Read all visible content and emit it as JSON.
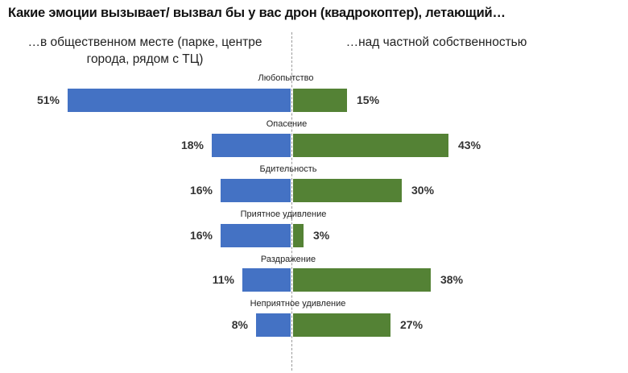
{
  "title": "Какие эмоции вызывает/ вызвал бы у вас дрон (квадрокоптер), летающий…",
  "subheads": {
    "left": "…в общественном месте (парке, центре города, рядом с ТЦ)",
    "right": "…над частной собственностью"
  },
  "colors": {
    "left": "#4472c4",
    "right": "#548235"
  },
  "rows": [
    {
      "category": "Любопытство",
      "left_label": "51%",
      "right_label": "15%"
    },
    {
      "category": "Опасение",
      "left_label": "18%",
      "right_label": "43%"
    },
    {
      "category": "Бдительность",
      "left_label": "16%",
      "right_label": "30%"
    },
    {
      "category": "Приятное удивление",
      "left_label": "16%",
      "right_label": "3%"
    },
    {
      "category": "Раздражение",
      "left_label": "11%",
      "right_label": "38%"
    },
    {
      "category": "Неприятное удивление",
      "left_label": "8%",
      "right_label": "27%"
    }
  ],
  "chart_data": {
    "type": "bar",
    "orientation": "horizontal-diverging",
    "title": "Какие эмоции вызывает/ вызвал бы у вас дрон (квадрокоптер), летающий…",
    "categories": [
      "Любопытство",
      "Опасение",
      "Бдительность",
      "Приятное удивление",
      "Раздражение",
      "Неприятное удивление"
    ],
    "series": [
      {
        "name": "…в общественном месте (парке, центре города, рядом с ТЦ)",
        "color": "#4472c4",
        "values": [
          51,
          18,
          16,
          16,
          11,
          8
        ]
      },
      {
        "name": "…над частной собственностью",
        "color": "#548235",
        "values": [
          15,
          43,
          30,
          3,
          38,
          27
        ]
      }
    ],
    "unit": "%",
    "xlabel": "",
    "ylabel": "",
    "grid": false,
    "legend_position": "top (column subheadings)"
  }
}
